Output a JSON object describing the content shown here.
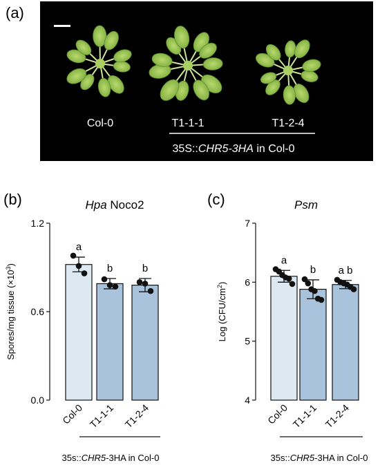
{
  "panel_a": {
    "label": "(a)",
    "scale_bar": true,
    "plant_labels": [
      "Col-0",
      "T1-1-1",
      "T1-2-4"
    ],
    "construct_prefix": "35S::",
    "construct_gene": "CHR5-3HA",
    "construct_suffix": " in Col-0",
    "colors": {
      "background": "#000000",
      "leaf": "#8fbf4a",
      "leaf_dark": "#6e9f33",
      "text": "#ffffff"
    }
  },
  "colors": {
    "col0_bar": "#dce9f2",
    "line_bar": "#a9c3dc",
    "edge": "#111111"
  },
  "chart_data": [
    {
      "type": "bar",
      "panel_label": "(b)",
      "title_italic": "Hpa",
      "title_rest": " Noco2",
      "ylabel_main": "Spores/mg tissue (×10",
      "ylabel_sup": "3",
      "ylabel_end": ")",
      "yticks": [
        "0.0",
        "0.6",
        "1.2"
      ],
      "ylim": [
        0,
        1.2
      ],
      "categories": [
        "Col-0",
        "T1-1-1",
        "T1-2-4"
      ],
      "values": [
        0.92,
        0.79,
        0.78
      ],
      "errors": [
        0.05,
        0.035,
        0.045
      ],
      "points": [
        [
          0.98,
          0.91,
          0.86
        ],
        [
          0.82,
          0.78,
          0.77
        ],
        [
          0.8,
          0.79,
          0.74
        ]
      ],
      "letters": [
        "a",
        "b",
        "b"
      ],
      "group_prefix": "35s::",
      "group_gene": "CHR5",
      "group_suffix": "-3HA in Col-0"
    },
    {
      "type": "bar",
      "panel_label": "(c)",
      "title_italic": "Psm",
      "title_rest": "",
      "ylabel_main": "Log (CFU/cm",
      "ylabel_sup": "2",
      "ylabel_end": ")",
      "yticks": [
        "4",
        "5",
        "6",
        "7"
      ],
      "ylim": [
        4,
        7
      ],
      "categories": [
        "Col-0",
        "T1-1-1",
        "T1-2-4"
      ],
      "values": [
        6.1,
        5.88,
        5.96
      ],
      "errors": [
        0.1,
        0.16,
        0.07
      ],
      "points": [
        [
          6.22,
          6.18,
          6.12,
          6.08,
          6.06,
          5.97
        ],
        [
          6.05,
          5.98,
          5.88,
          5.85,
          5.72,
          5.7
        ],
        [
          6.04,
          6.0,
          5.98,
          5.96,
          5.92,
          5.88
        ]
      ],
      "letters": [
        "a",
        "b",
        "a b"
      ],
      "group_prefix": "35s::",
      "group_gene": "CHR5",
      "group_suffix": "-3HA in Col-0"
    }
  ]
}
